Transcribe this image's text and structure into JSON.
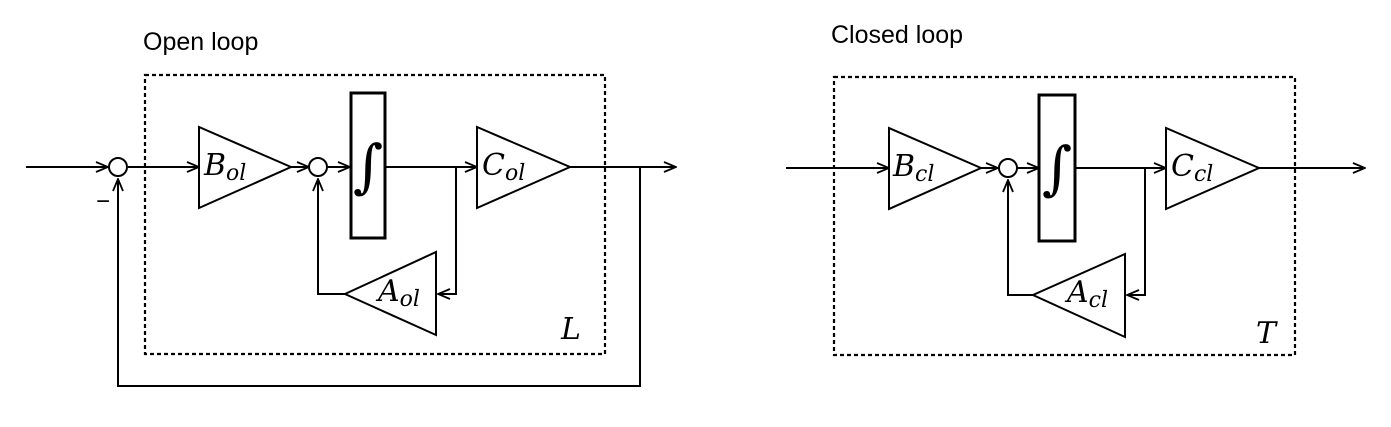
{
  "open_loop": {
    "title": "Open loop",
    "input_gain": "B",
    "input_gain_sub": "ol",
    "output_gain": "C",
    "output_gain_sub": "ol",
    "feedback_gain": "A",
    "feedback_gain_sub": "ol",
    "integrator": "∫",
    "outer_feedback_sign": "−",
    "system_label": "L"
  },
  "closed_loop": {
    "title": "Closed loop",
    "input_gain": "B",
    "input_gain_sub": "cl",
    "output_gain": "C",
    "output_gain_sub": "cl",
    "feedback_gain": "A",
    "feedback_gain_sub": "cl",
    "integrator": "∫",
    "system_label": "T"
  }
}
